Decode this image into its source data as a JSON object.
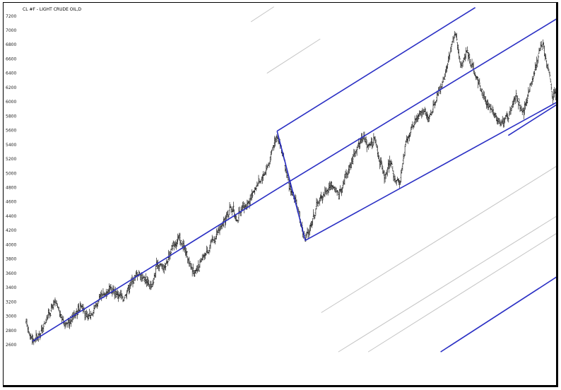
{
  "chart_data": {
    "type": "line",
    "title": "CL #F - LIGHT CRUDE OIL,D",
    "xlabel": "",
    "ylabel": "",
    "ylim": [
      2500,
      7300
    ],
    "ytick_labels": [
      "7200",
      "7000",
      "6800",
      "6600",
      "6400",
      "6200",
      "6000",
      "5800",
      "5600",
      "5400",
      "5200",
      "5000",
      "4800",
      "4600",
      "4400",
      "4200",
      "4000",
      "3800",
      "3600",
      "3400",
      "3200",
      "3000",
      "2800",
      "2600"
    ],
    "grid": false,
    "legend": "none",
    "price_series": {
      "name": "",
      "style": "OHLC bars",
      "color": "#000000",
      "x_range": [
        0,
        100
      ],
      "anchors": [
        [
          0,
          2900
        ],
        [
          1.2,
          2650
        ],
        [
          2.6,
          2740
        ],
        [
          4,
          3010
        ],
        [
          5.4,
          3190
        ],
        [
          6.6,
          2980
        ],
        [
          7.8,
          2880
        ],
        [
          9,
          3030
        ],
        [
          10.4,
          3170
        ],
        [
          11.4,
          2960
        ],
        [
          12.6,
          3100
        ],
        [
          14,
          3260
        ],
        [
          15.6,
          3380
        ],
        [
          17,
          3320
        ],
        [
          18.2,
          3250
        ],
        [
          19.6,
          3460
        ],
        [
          21,
          3610
        ],
        [
          22.4,
          3520
        ],
        [
          23.6,
          3400
        ],
        [
          24.6,
          3740
        ],
        [
          26,
          3680
        ],
        [
          27.2,
          3930
        ],
        [
          28.6,
          4090
        ],
        [
          29.6,
          3960
        ],
        [
          30.8,
          3700
        ],
        [
          32,
          3600
        ],
        [
          32.8,
          3750
        ],
        [
          34.4,
          3980
        ],
        [
          36,
          4170
        ],
        [
          37.4,
          4340
        ],
        [
          38.4,
          4550
        ],
        [
          39.6,
          4350
        ],
        [
          40.4,
          4480
        ],
        [
          41.8,
          4600
        ],
        [
          43.2,
          4830
        ],
        [
          44.4,
          4950
        ],
        [
          45.6,
          5150
        ],
        [
          46.4,
          5400
        ],
        [
          47.1,
          5540
        ],
        [
          48.2,
          5250
        ],
        [
          49.2,
          4850
        ],
        [
          50.6,
          4600
        ],
        [
          51.8,
          4230
        ],
        [
          52.4,
          4060
        ],
        [
          53.4,
          4270
        ],
        [
          54.8,
          4600
        ],
        [
          56.2,
          4750
        ],
        [
          57.4,
          4830
        ],
        [
          58.6,
          4700
        ],
        [
          60,
          4960
        ],
        [
          61.6,
          5270
        ],
        [
          63,
          5520
        ],
        [
          64.2,
          5380
        ],
        [
          65.4,
          5470
        ],
        [
          66.4,
          5170
        ],
        [
          67.4,
          4920
        ],
        [
          68.4,
          5190
        ],
        [
          69.4,
          4850
        ],
        [
          70.2,
          4900
        ],
        [
          71.2,
          5400
        ],
        [
          72.8,
          5710
        ],
        [
          74.2,
          5900
        ],
        [
          75.6,
          5750
        ],
        [
          77,
          6060
        ],
        [
          78.4,
          6320
        ],
        [
          79.6,
          6700
        ],
        [
          80.5,
          6980
        ],
        [
          81.6,
          6520
        ],
        [
          82.8,
          6720
        ],
        [
          84,
          6430
        ],
        [
          85.2,
          6230
        ],
        [
          86.4,
          5970
        ],
        [
          87.8,
          5840
        ],
        [
          89.2,
          5700
        ],
        [
          90.6,
          5820
        ],
        [
          92,
          6100
        ],
        [
          93.2,
          5800
        ],
        [
          94.4,
          6160
        ],
        [
          95.8,
          6520
        ],
        [
          96.8,
          6860
        ],
        [
          98,
          6460
        ],
        [
          98.8,
          6080
        ],
        [
          100,
          6180
        ]
      ]
    },
    "trendlines": {
      "color": "#2a2fc4",
      "segments": [
        {
          "from": [
            1.2,
            2650
          ],
          "to": [
            47.1,
            4780
          ]
        },
        {
          "from": [
            47.1,
            5590
          ],
          "to": [
            84.3,
            7320
          ]
        },
        {
          "from": [
            47.1,
            5590
          ],
          "to": [
            52.4,
            4060
          ]
        },
        {
          "from": [
            52.4,
            4060
          ],
          "to": [
            100,
            6010
          ]
        },
        {
          "from": [
            47.1,
            4780
          ],
          "to": [
            100,
            7180
          ]
        },
        {
          "from": [
            90.5,
            5530
          ],
          "to": [
            100,
            5980
          ]
        }
      ]
    },
    "outer_lines": {
      "color": "#2a2fc4",
      "segments": [
        {
          "from": [
            77.8,
            2500
          ],
          "to": [
            100,
            3570
          ]
        }
      ]
    },
    "warning_lines": {
      "color": "#c4c4c4",
      "segments": [
        {
          "from": [
            42.2,
            7120
          ],
          "to": [
            46.5,
            7330
          ]
        },
        {
          "from": [
            45.2,
            6400
          ],
          "to": [
            55.2,
            6880
          ]
        },
        {
          "from": [
            55.4,
            3050
          ],
          "to": [
            100,
            5120
          ]
        },
        {
          "from": [
            58.6,
            2500
          ],
          "to": [
            100,
            4420
          ]
        },
        {
          "from": [
            64.2,
            2500
          ],
          "to": [
            100,
            4180
          ]
        }
      ]
    }
  }
}
